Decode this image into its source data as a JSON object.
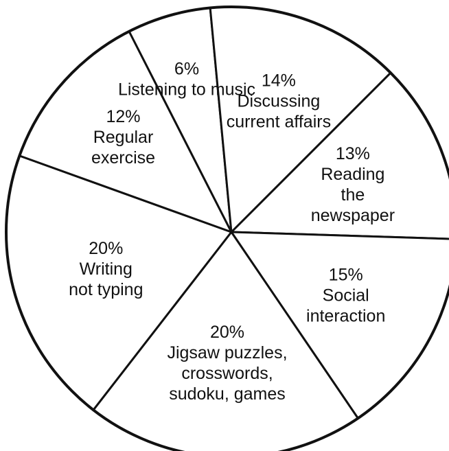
{
  "chart_data": {
    "type": "pie",
    "title": "",
    "colors": {
      "fill": "#ffffff",
      "stroke": "#111111",
      "text": "#111111"
    },
    "slices": [
      {
        "value": 13,
        "percent_label": "13%",
        "lines": [
          "Reading",
          "the",
          "newspaper"
        ]
      },
      {
        "value": 15,
        "percent_label": "15%",
        "lines": [
          "Social",
          "interaction"
        ]
      },
      {
        "value": 20,
        "percent_label": "20%",
        "lines": [
          "Jigsaw puzzles,",
          "crosswords,",
          "sudoku, games"
        ]
      },
      {
        "value": 20,
        "percent_label": "20%",
        "lines": [
          "Writing",
          "not typing"
        ]
      },
      {
        "value": 12,
        "percent_label": "12%",
        "lines": [
          "Regular",
          "exercise"
        ]
      },
      {
        "value": 6,
        "percent_label": "6%",
        "lines": [
          "Listening to music"
        ]
      },
      {
        "value": 14,
        "percent_label": "14%",
        "lines": [
          "Discussing",
          "current affairs"
        ]
      }
    ]
  }
}
